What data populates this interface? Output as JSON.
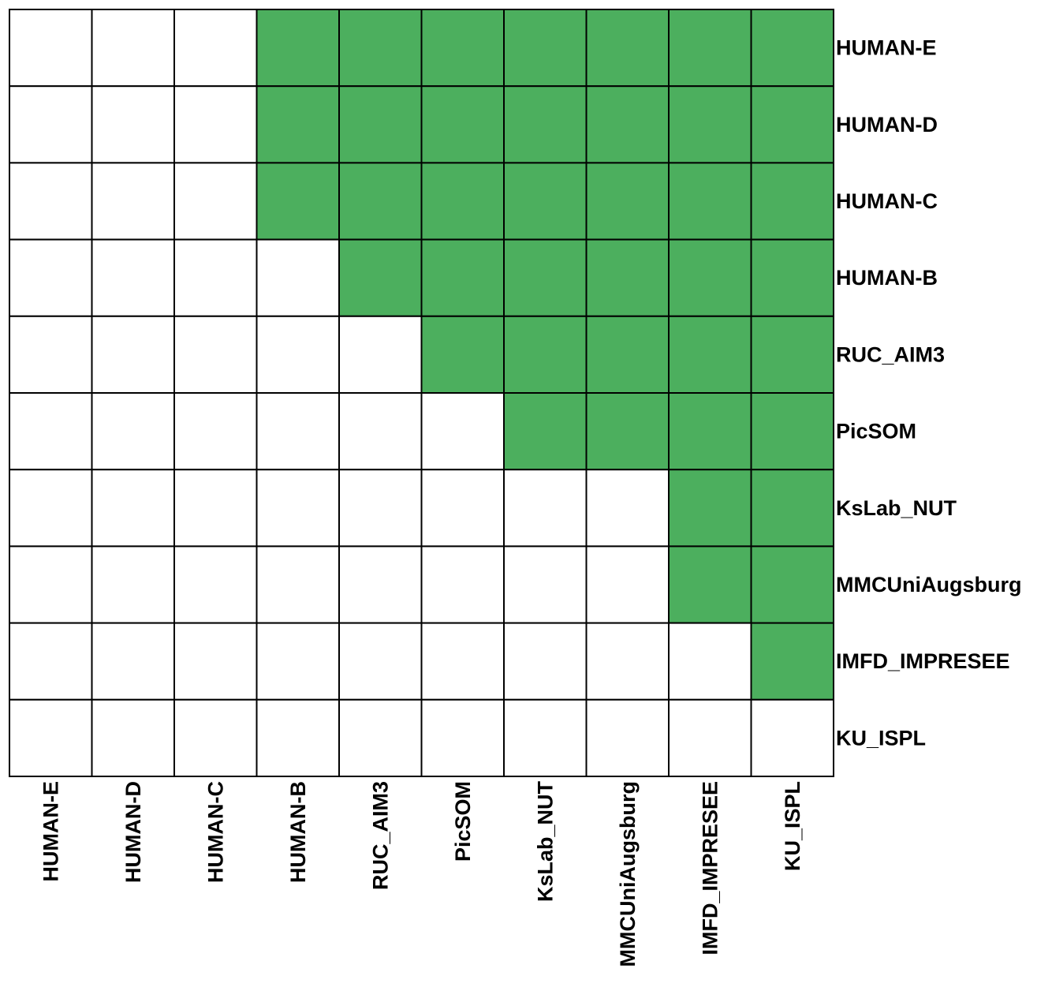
{
  "chart_data": {
    "type": "heatmap",
    "title": "",
    "xlabel": "",
    "ylabel": "",
    "row_labels": [
      "HUMAN-E",
      "HUMAN-D",
      "HUMAN-C",
      "HUMAN-B",
      "RUC_AIM3",
      "PicSOM",
      "KsLab_NUT",
      "MMCUniAugsburg",
      "IMFD_IMPRESEE",
      "KU_ISPL"
    ],
    "col_labels": [
      "HUMAN-E",
      "HUMAN-D",
      "HUMAN-C",
      "HUMAN-B",
      "RUC_AIM3",
      "PicSOM",
      "KsLab_NUT",
      "MMCUniAugsburg",
      "IMFD_IMPRESEE",
      "KU_ISPL"
    ],
    "matrix": [
      [
        0,
        0,
        0,
        1,
        1,
        1,
        1,
        1,
        1,
        1
      ],
      [
        0,
        0,
        0,
        1,
        1,
        1,
        1,
        1,
        1,
        1
      ],
      [
        0,
        0,
        0,
        1,
        1,
        1,
        1,
        1,
        1,
        1
      ],
      [
        0,
        0,
        0,
        0,
        1,
        1,
        1,
        1,
        1,
        1
      ],
      [
        0,
        0,
        0,
        0,
        0,
        1,
        1,
        1,
        1,
        1
      ],
      [
        0,
        0,
        0,
        0,
        0,
        0,
        1,
        1,
        1,
        1
      ],
      [
        0,
        0,
        0,
        0,
        0,
        0,
        0,
        0,
        1,
        1
      ],
      [
        0,
        0,
        0,
        0,
        0,
        0,
        0,
        0,
        1,
        1
      ],
      [
        0,
        0,
        0,
        0,
        0,
        0,
        0,
        0,
        0,
        1
      ],
      [
        0,
        0,
        0,
        0,
        0,
        0,
        0,
        0,
        0,
        0
      ]
    ],
    "row_label_position": "right",
    "col_label_position": "bottom",
    "col_label_rotation": "vertical",
    "grid": true
  },
  "colors": {
    "filled": "#4CAF5E",
    "empty": "#FFFFFF",
    "grid": "#000000",
    "text": "#000000"
  }
}
